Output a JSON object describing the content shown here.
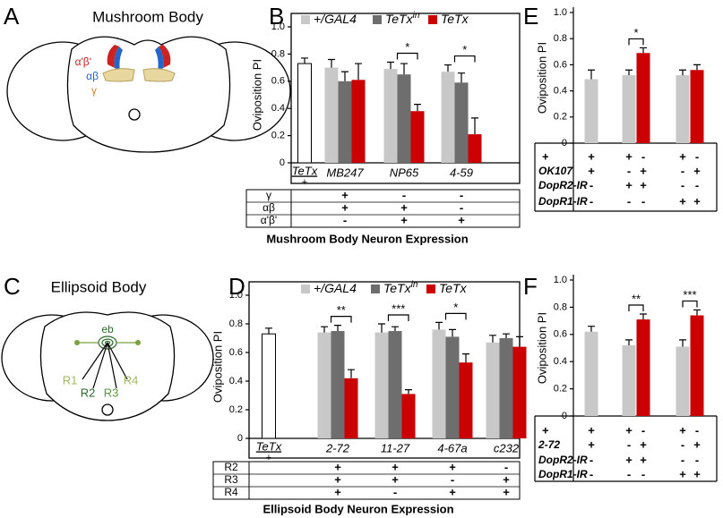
{
  "diagrams": [
    {
      "panel": "A",
      "title": "Mushroom Body",
      "labels": [
        "α'β'",
        "αβ",
        "γ"
      ]
    },
    {
      "panel": "C",
      "title": "Ellipsoid Body",
      "labels": [
        "eb",
        "R1",
        "R2",
        "R3",
        "R4"
      ]
    }
  ],
  "chart_data": [
    {
      "panel": "B",
      "type": "bar",
      "ylabel": "Oviposition PI",
      "ylim": [
        0,
        1
      ],
      "yticks": [
        0,
        0.2,
        0.4,
        0.6,
        0.8,
        {
          "value": 1,
          "label": "1.0"
        }
      ],
      "control": {
        "label": "TeTx",
        "sublabel": "+",
        "value": 0.73,
        "error": 0.04,
        "color": "#ffffff"
      },
      "categories": [
        "MB247",
        "NP65",
        "4-59"
      ],
      "series": [
        {
          "name": "+/GAL4",
          "color": "#c8c8c8",
          "values": [
            0.7,
            0.69,
            0.67
          ],
          "errors": [
            0.06,
            0.05,
            0.05
          ]
        },
        {
          "name": "TeTx",
          "superscript": "in",
          "color": "#6e6e6e",
          "values": [
            0.6,
            0.65,
            0.59
          ],
          "errors": [
            0.07,
            0.08,
            0.07
          ]
        },
        {
          "name": "TeTx",
          "color": "#cc0000",
          "values": [
            0.61,
            0.38,
            0.21
          ],
          "errors": [
            0.12,
            0.05,
            0.12
          ]
        }
      ],
      "significance": [
        null,
        "*",
        "*"
      ],
      "table": {
        "title": "Mushroom Body Neuron Expression",
        "rows": [
          {
            "label": "γ",
            "cells": [
              "+",
              "-",
              "-"
            ]
          },
          {
            "label": "αβ",
            "cells": [
              "+",
              "+",
              "-"
            ]
          },
          {
            "label": "α'β'",
            "cells": [
              "-",
              "+",
              "+"
            ]
          }
        ]
      }
    },
    {
      "panel": "D",
      "type": "bar",
      "ylabel": "Oviposition PI",
      "ylim": [
        0,
        1
      ],
      "yticks": [
        0,
        0.2,
        0.4,
        0.6,
        0.8,
        {
          "value": 1,
          "label": "1.0"
        }
      ],
      "control": {
        "label": "TeTx",
        "sublabel": "+",
        "value": 0.73,
        "error": 0.04,
        "color": "#ffffff"
      },
      "categories": [
        "2-72",
        "11-27",
        "4-67a",
        "c232"
      ],
      "series": [
        {
          "name": "+/GAL4",
          "color": "#c8c8c8",
          "values": [
            0.74,
            0.74,
            0.76,
            0.67
          ],
          "errors": [
            0.04,
            0.06,
            0.05,
            0.05
          ]
        },
        {
          "name": "TeTx",
          "superscript": "in",
          "color": "#6e6e6e",
          "values": [
            0.75,
            0.75,
            0.71,
            0.7
          ],
          "errors": [
            0.04,
            0.03,
            0.05,
            0.03
          ]
        },
        {
          "name": "TeTx",
          "color": "#cc0000",
          "values": [
            0.42,
            0.31,
            0.53,
            0.64
          ],
          "errors": [
            0.06,
            0.03,
            0.06,
            0.07
          ]
        }
      ],
      "significance": [
        "**",
        "***",
        "*",
        null
      ],
      "table": {
        "title": "Ellipsoid Body Neuron Expression",
        "rows": [
          {
            "label": "R2",
            "cells": [
              "+",
              "+",
              "+",
              "-"
            ]
          },
          {
            "label": "R3",
            "cells": [
              "+",
              "+",
              "-",
              "+"
            ]
          },
          {
            "label": "R4",
            "cells": [
              "+",
              "-",
              "+",
              "+"
            ]
          }
        ]
      }
    },
    {
      "panel": "E",
      "type": "bar",
      "ylabel": "Oviposition PI",
      "ylim": [
        0,
        1
      ],
      "yticks": [
        0,
        0.2,
        0.4,
        0.6,
        0.8,
        {
          "value": 1,
          "label": "1.0"
        }
      ],
      "values": [
        0.49,
        0.52,
        0.69,
        0.52,
        0.56
      ],
      "errors": [
        0.07,
        0.04,
        0.04,
        0.04,
        0.04
      ],
      "colors": [
        "#c8c8c8",
        "#c8c8c8",
        "#cc0000",
        "#c8c8c8",
        "#cc0000"
      ],
      "significance": [
        null,
        null,
        "*",
        null,
        null
      ],
      "table": {
        "rows": [
          {
            "label": "+",
            "cells": [
              "+",
              "+",
              "-",
              "+",
              "-"
            ]
          },
          {
            "label": "OK107",
            "cells": [
              "+",
              "-",
              "+",
              "-",
              "+"
            ]
          },
          {
            "label": "DopR2-IR",
            "cells": [
              "-",
              "+",
              "+",
              "-",
              "-"
            ]
          },
          {
            "label": "DopR1-IR",
            "cells": [
              "-",
              "-",
              "-",
              "+",
              "+"
            ]
          }
        ]
      }
    },
    {
      "panel": "F",
      "type": "bar",
      "ylabel": "Oviposition PI",
      "ylim": [
        0,
        1
      ],
      "yticks": [
        0,
        0.2,
        0.4,
        0.6,
        0.8,
        {
          "value": 1,
          "label": "1.0"
        }
      ],
      "values": [
        0.62,
        0.52,
        0.71,
        0.51,
        0.74
      ],
      "errors": [
        0.04,
        0.04,
        0.04,
        0.05,
        0.04
      ],
      "colors": [
        "#c8c8c8",
        "#c8c8c8",
        "#cc0000",
        "#c8c8c8",
        "#cc0000"
      ],
      "significance": [
        null,
        null,
        "**",
        null,
        "***"
      ],
      "table": {
        "rows": [
          {
            "label": "+",
            "cells": [
              "+",
              "+",
              "-",
              "+",
              "-"
            ]
          },
          {
            "label": "2-72",
            "cells": [
              "+",
              "-",
              "+",
              "-",
              "+"
            ]
          },
          {
            "label": "DopR2-IR",
            "cells": [
              "-",
              "+",
              "+",
              "-",
              "-"
            ]
          },
          {
            "label": "DopR1-IR",
            "cells": [
              "-",
              "-",
              "-",
              "+",
              "+"
            ]
          }
        ]
      }
    }
  ]
}
